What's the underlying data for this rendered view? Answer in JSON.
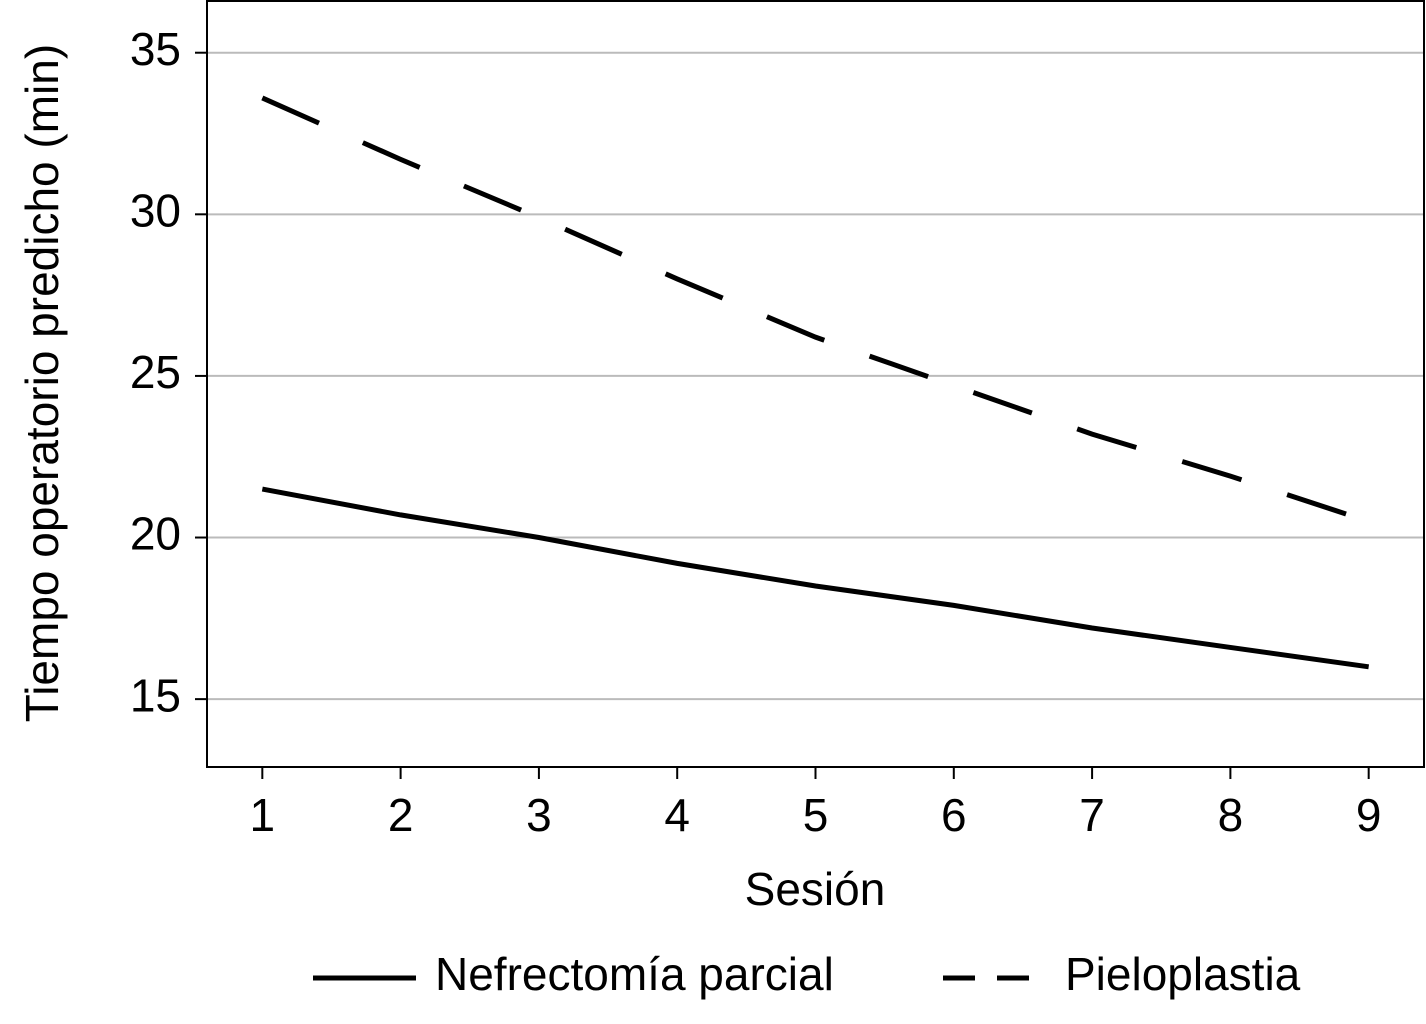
{
  "chart_data": {
    "type": "line",
    "x_label": "Sesión",
    "y_label": "Tiempo operatorio predicho (min)",
    "x": [
      1,
      2,
      3,
      4,
      5,
      6,
      7,
      8,
      9
    ],
    "series": [
      {
        "name": "Nefrectomía parcial",
        "color": "#000000",
        "dash": "solid",
        "values": [
          21.5,
          20.7,
          20.0,
          19.2,
          18.5,
          17.9,
          17.2,
          16.6,
          16.0
        ]
      },
      {
        "name": "Pieloplastia",
        "color": "#000000",
        "dash": "dashed",
        "values": [
          33.6,
          31.7,
          29.9,
          28.0,
          26.2,
          24.7,
          23.2,
          21.9,
          20.5
        ]
      }
    ],
    "xlim": [
      0.6,
      9.4
    ],
    "xticks": [
      1,
      2,
      3,
      4,
      5,
      6,
      7,
      8,
      9
    ],
    "ylim": [
      12.9,
      36.6
    ],
    "yticks": [
      15,
      20,
      25,
      30,
      35
    ],
    "grid": true,
    "legend": "bottom"
  }
}
